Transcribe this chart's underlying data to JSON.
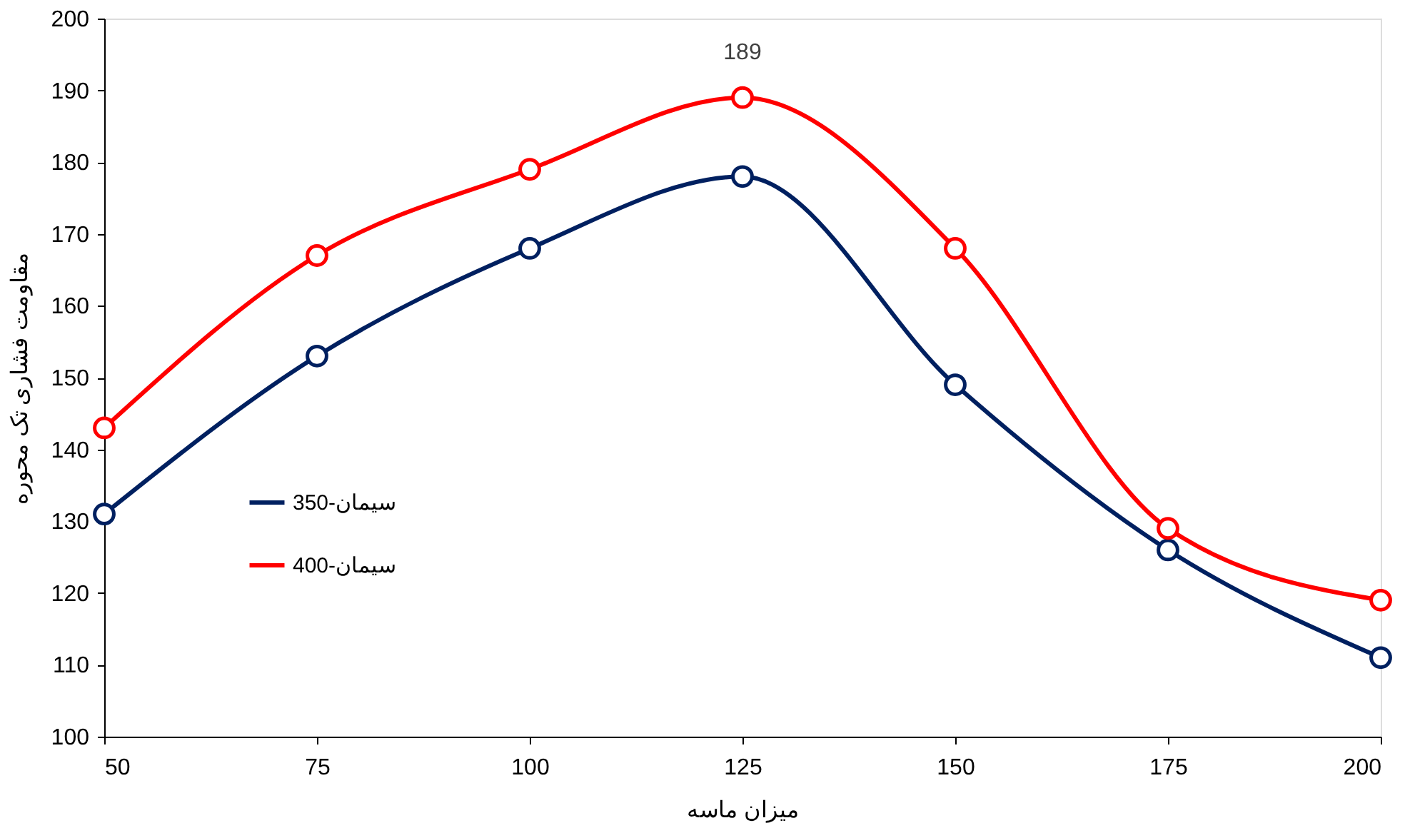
{
  "chart_data": {
    "type": "line",
    "xlabel": "میزان ماسه",
    "ylabel": "مقاومت فشاری تک محوره",
    "x": [
      50,
      75,
      100,
      125,
      150,
      175,
      200
    ],
    "xlim": [
      50,
      200
    ],
    "xticks": [
      50,
      75,
      100,
      125,
      150,
      175,
      200
    ],
    "ylim": [
      100,
      200
    ],
    "yticks": [
      100,
      110,
      120,
      130,
      140,
      150,
      160,
      170,
      180,
      190,
      200
    ],
    "series": [
      {
        "name": "350-سیمان",
        "color": "#002060",
        "values": [
          131,
          153,
          168,
          178,
          149,
          126,
          111
        ]
      },
      {
        "name": "400-سیمان",
        "color": "#ff0000",
        "values": [
          143,
          167,
          179,
          189,
          168,
          129,
          119
        ],
        "value_labels": [
          null,
          null,
          null,
          "189",
          null,
          null,
          null
        ]
      }
    ],
    "marker": "circle",
    "line_style": "solid",
    "grid": false,
    "legend": "left"
  }
}
